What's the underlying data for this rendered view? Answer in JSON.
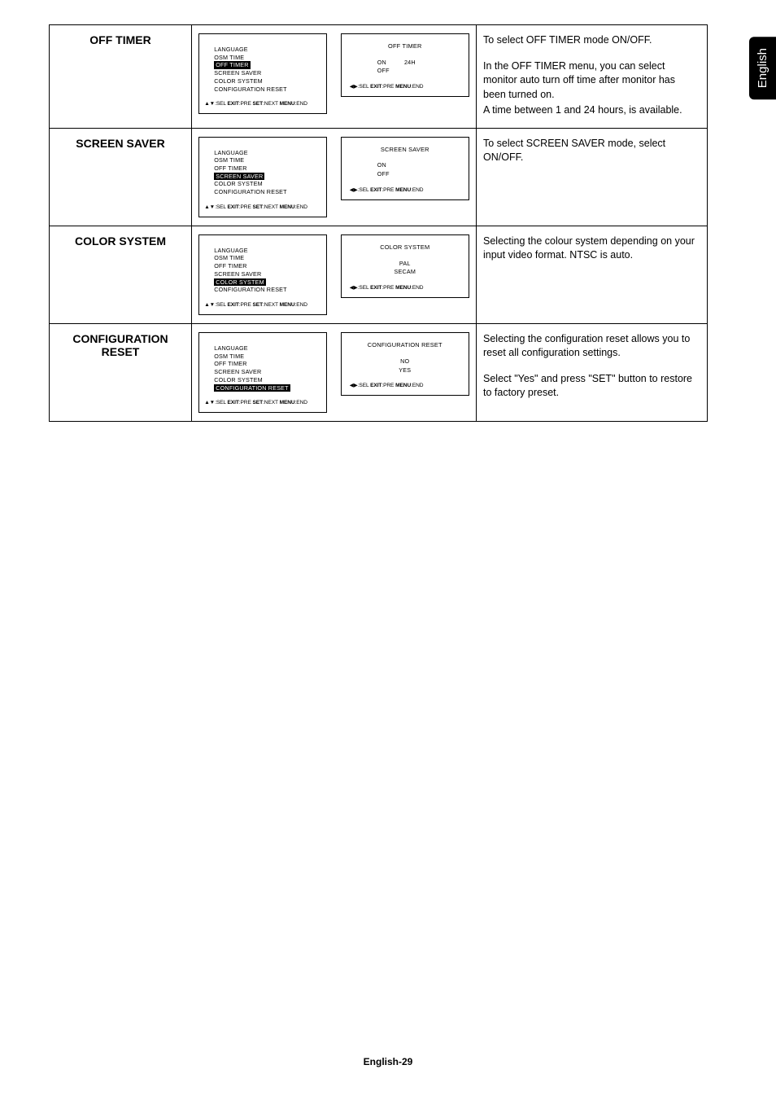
{
  "lang_tab": "English",
  "menu_items": [
    "LANGUAGE",
    "OSM TIME",
    "OFF TIMER",
    "SCREEN SAVER",
    "COLOR SYSTEM",
    "CONFIGURATION RESET"
  ],
  "footer_main": {
    "arrows": "▲▼",
    "sel": ":SEL ",
    "exit_b": "EXIT",
    "exit": ":PRE ",
    "set_b": "SET",
    "set": ":NEXT ",
    "menu_b": "MENU",
    "menu": ":END"
  },
  "footer_sub": {
    "arrows": "◀▶",
    "sel": ":SEL",
    "gap1": "   ",
    "exit_b": "EXIT",
    "exit": ":PRE",
    "gap2": "        ",
    "menu_b": "MENU",
    "menu": ":END"
  },
  "rows": [
    {
      "label": "OFF TIMER",
      "highlight_index": 2,
      "sub_title": "OFF TIMER",
      "sub_options_mode": "on24",
      "sub_on": "ON",
      "sub_24h": "24H",
      "sub_off": "OFF",
      "desc": [
        "To select OFF TIMER mode ON/OFF.",
        "SPACER",
        "In the OFF TIMER menu, you can select monitor auto turn off time after monitor has been turned on.",
        "A time between 1 and 24 hours, is available."
      ]
    },
    {
      "label": "SCREEN SAVER",
      "highlight_index": 3,
      "sub_title": "SCREEN SAVER",
      "sub_options_mode": "onoff",
      "sub_on": "ON",
      "sub_off": "OFF",
      "desc": [
        "To select SCREEN SAVER mode, select ON/OFF."
      ]
    },
    {
      "label": "COLOR SYSTEM",
      "highlight_index": 4,
      "sub_title": "COLOR SYSTEM",
      "sub_options_mode": "pal",
      "sub_pal": "PAL",
      "sub_secam": "SECAM",
      "desc": [
        "Selecting the colour system depending on your input video format. NTSC is auto."
      ]
    },
    {
      "label": "CONFIGURATION RESET",
      "highlight_index": 5,
      "sub_title": "CONFIGURATION RESET",
      "sub_options_mode": "noyes",
      "sub_no": "NO",
      "sub_yes": "YES",
      "desc": [
        "Selecting the configuration reset allows you to reset all configuration settings.",
        "SPACER",
        "Select \"Yes\" and press \"SET\" button to restore to factory preset."
      ]
    }
  ],
  "page_footer": "English-29"
}
